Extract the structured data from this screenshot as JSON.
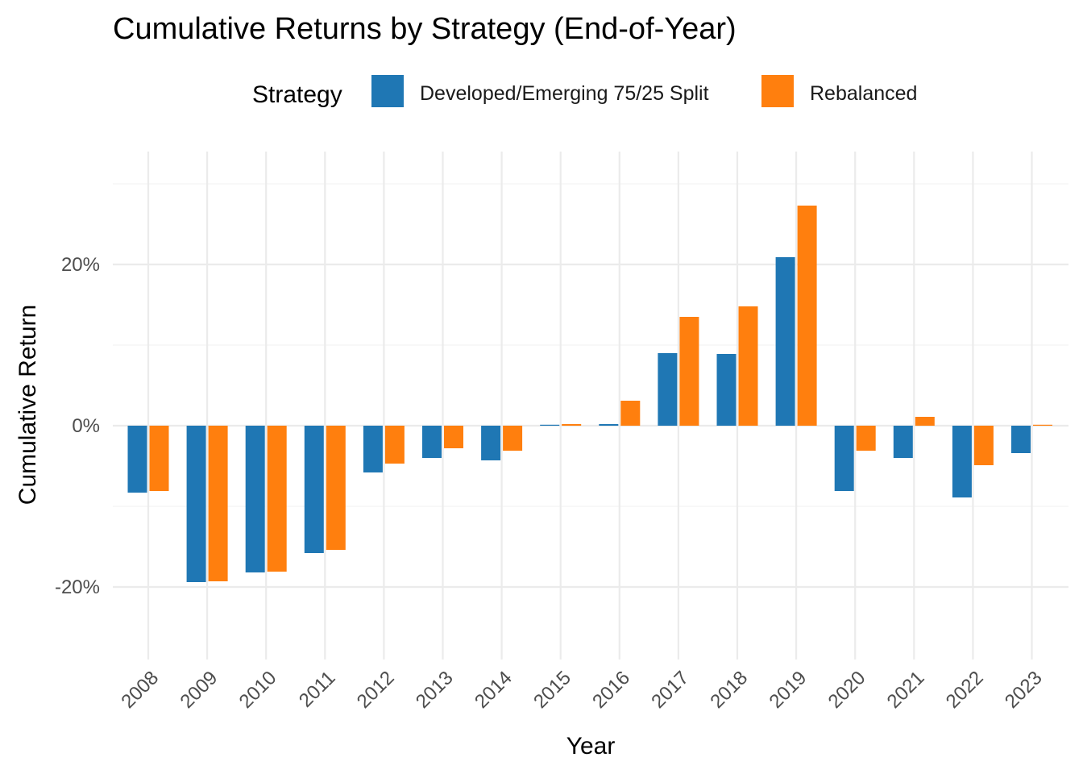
{
  "chart_data": {
    "type": "bar",
    "title": "Cumulative Returns by Strategy (End-of-Year)",
    "xlabel": "Year",
    "ylabel": "Cumulative Return",
    "ylim": [
      -0.29,
      0.34
    ],
    "yticks": [
      -0.2,
      0,
      0.2
    ],
    "ytick_labels": [
      "-20%",
      "0%",
      "20%"
    ],
    "grid": true,
    "legend": {
      "title": "Strategy",
      "position": "top"
    },
    "categories": [
      "2008",
      "2009",
      "2010",
      "2011",
      "2012",
      "2013",
      "2014",
      "2015",
      "2016",
      "2017",
      "2018",
      "2019",
      "2020",
      "2021",
      "2022",
      "2023"
    ],
    "series": [
      {
        "name": "Developed/Emerging 75/25 Split",
        "color": "#1f77b4",
        "values": [
          -0.083,
          -0.194,
          -0.182,
          -0.158,
          -0.058,
          -0.04,
          -0.043,
          0.0,
          0.002,
          0.09,
          0.089,
          0.209,
          -0.081,
          -0.04,
          -0.089,
          -0.034
        ]
      },
      {
        "name": "Rebalanced",
        "color": "#ff7f0e",
        "values": [
          -0.081,
          -0.193,
          -0.181,
          -0.154,
          -0.047,
          -0.028,
          -0.031,
          0.002,
          0.031,
          0.135,
          0.148,
          0.273,
          -0.031,
          0.011,
          -0.049,
          0.0
        ]
      }
    ]
  }
}
